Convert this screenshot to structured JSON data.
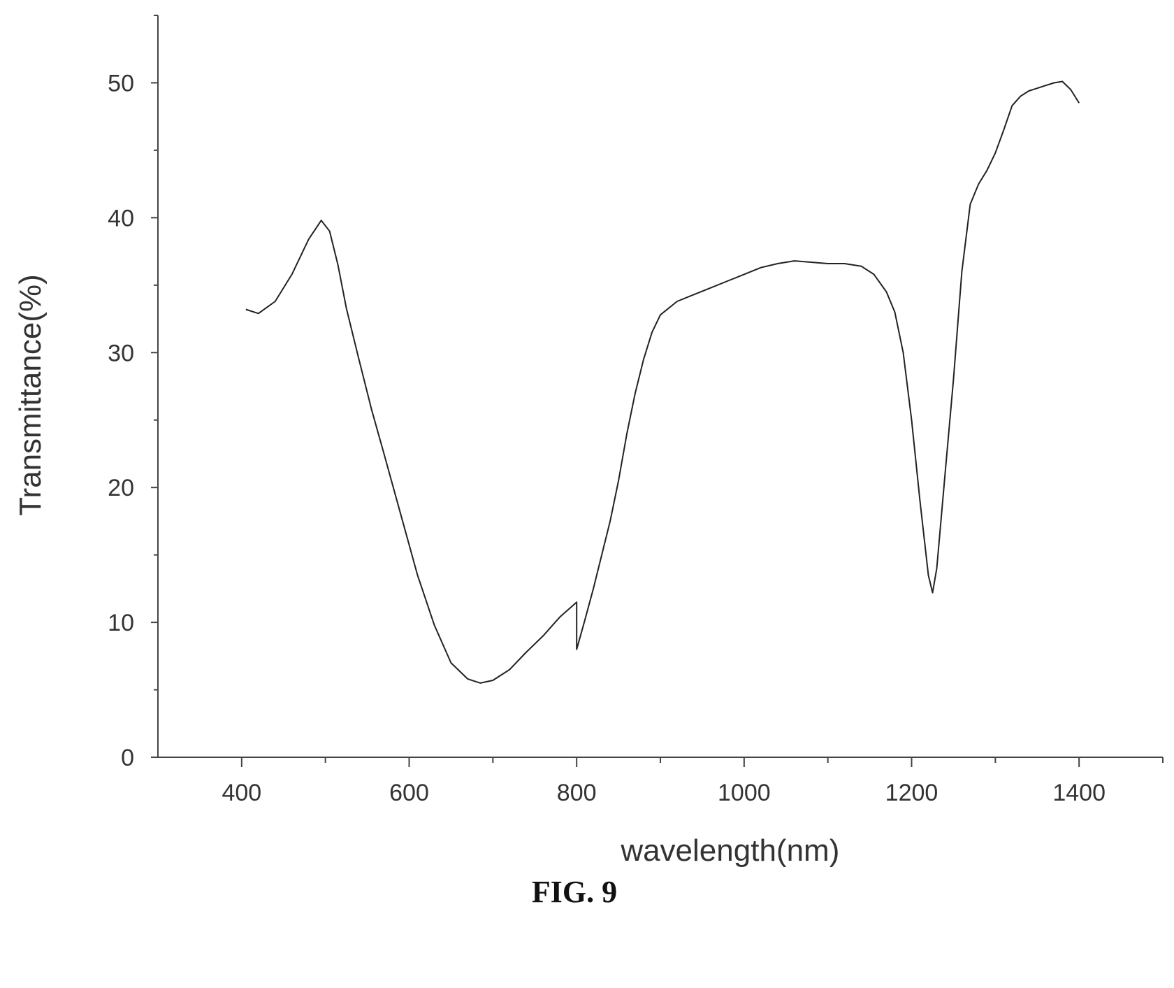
{
  "figure": {
    "caption": "FIG. 9"
  },
  "chart_data": {
    "type": "line",
    "title": "",
    "xlabel": "wavelength(nm)",
    "ylabel": "Transmittance(%)",
    "xlim": [
      300,
      1500
    ],
    "ylim": [
      0,
      55
    ],
    "x_ticks": [
      400,
      600,
      800,
      1000,
      1200,
      1400
    ],
    "y_ticks": [
      0,
      10,
      20,
      30,
      40,
      50
    ],
    "grid": false,
    "legend": "none",
    "line_color": "#222222",
    "series": [
      {
        "x": [
          405,
          420,
          440,
          460,
          480,
          495,
          505,
          515,
          525,
          540,
          555,
          570,
          590,
          610,
          630,
          650,
          670,
          685,
          700,
          720,
          740,
          760,
          780,
          800,
          800,
          810,
          820,
          830,
          840,
          850,
          860,
          870,
          880,
          890,
          900,
          920,
          940,
          960,
          980,
          1000,
          1020,
          1040,
          1060,
          1080,
          1100,
          1120,
          1140,
          1155,
          1170,
          1180,
          1190,
          1200,
          1210,
          1220,
          1225,
          1230,
          1240,
          1250,
          1260,
          1270,
          1280,
          1290,
          1300,
          1310,
          1320,
          1330,
          1340,
          1350,
          1360,
          1370,
          1380,
          1390,
          1400
        ],
        "y": [
          33.2,
          32.9,
          33.8,
          35.8,
          38.4,
          39.8,
          39.0,
          36.5,
          33.3,
          29.5,
          25.8,
          22.5,
          18.0,
          13.5,
          9.8,
          7.0,
          5.8,
          5.5,
          5.7,
          6.5,
          7.8,
          9.0,
          10.4,
          11.5,
          8.0,
          10.2,
          12.5,
          15.0,
          17.5,
          20.5,
          24.0,
          27.0,
          29.5,
          31.5,
          32.8,
          33.8,
          34.3,
          34.8,
          35.3,
          35.8,
          36.3,
          36.6,
          36.8,
          36.7,
          36.6,
          36.6,
          36.4,
          35.8,
          34.5,
          33.0,
          30.0,
          25.0,
          19.0,
          13.5,
          12.2,
          14.0,
          21.0,
          28.0,
          36.0,
          41.0,
          42.5,
          43.5,
          44.8,
          46.5,
          48.3,
          49.0,
          49.4,
          49.6,
          49.8,
          50.0,
          50.1,
          49.5,
          48.5
        ]
      }
    ]
  }
}
